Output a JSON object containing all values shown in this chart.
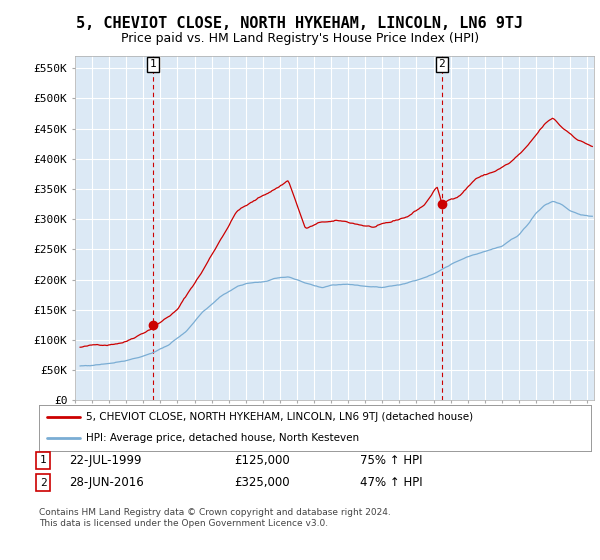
{
  "title": "5, CHEVIOT CLOSE, NORTH HYKEHAM, LINCOLN, LN6 9TJ",
  "subtitle": "Price paid vs. HM Land Registry's House Price Index (HPI)",
  "ylabel_ticks": [
    "£0",
    "£50K",
    "£100K",
    "£150K",
    "£200K",
    "£250K",
    "£300K",
    "£350K",
    "£400K",
    "£450K",
    "£500K",
    "£550K"
  ],
  "ytick_values": [
    0,
    50000,
    100000,
    150000,
    200000,
    250000,
    300000,
    350000,
    400000,
    450000,
    500000,
    550000
  ],
  "ylim": [
    0,
    570000
  ],
  "xlim_start": 1995.3,
  "xlim_end": 2025.4,
  "red_color": "#cc0000",
  "blue_color": "#7aadd4",
  "plot_bg_color": "#dce9f5",
  "background_color": "#ffffff",
  "grid_color": "#ffffff",
  "legend_label_red": "5, CHEVIOT CLOSE, NORTH HYKEHAM, LINCOLN, LN6 9TJ (detached house)",
  "legend_label_blue": "HPI: Average price, detached house, North Kesteven",
  "point1_x": 1999.55,
  "point1_y": 125000,
  "point1_label": "1",
  "point2_x": 2016.49,
  "point2_y": 325000,
  "point2_label": "2",
  "footer_text": "Contains HM Land Registry data © Crown copyright and database right 2024.\nThis data is licensed under the Open Government Licence v3.0.",
  "title_fontsize": 11,
  "subtitle_fontsize": 9
}
